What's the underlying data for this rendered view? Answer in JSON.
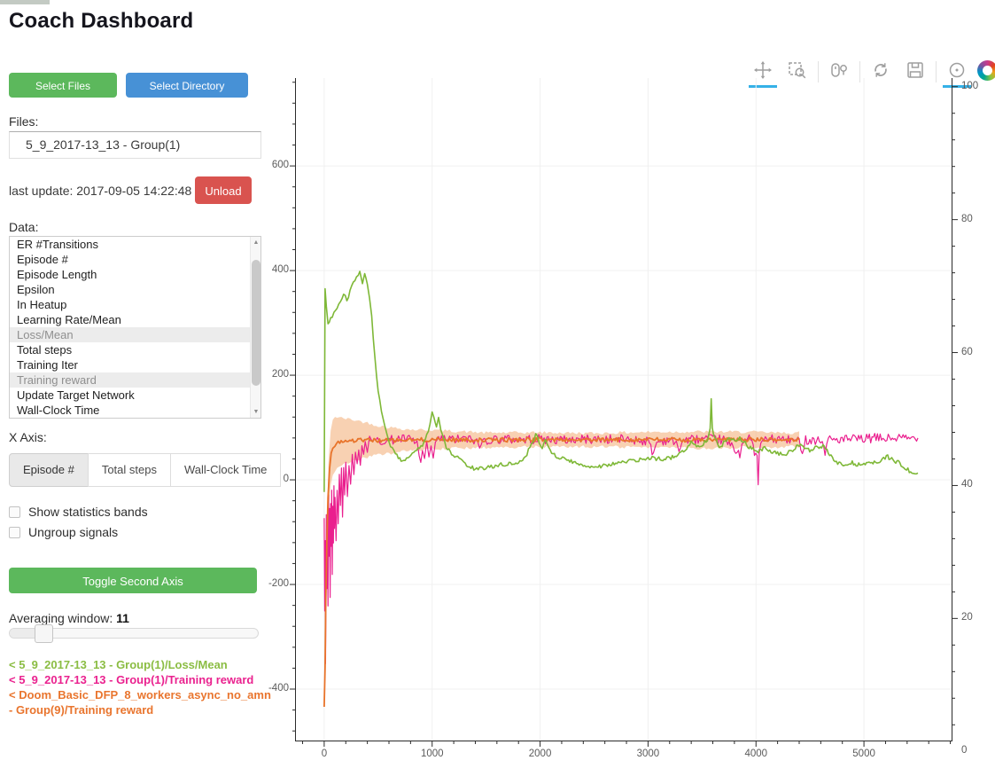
{
  "page": {
    "title": "Coach Dashboard"
  },
  "sidebar": {
    "select_files_label": "Select Files",
    "select_directory_label": "Select Directory",
    "files_label": "Files:",
    "file_selected": "5_9_2017-13_13 - Group(1)",
    "last_update": "last update: 2017-09-05 14:22:48",
    "unload_label": "Unload",
    "data_label": "Data:",
    "data_items": [
      {
        "label": "ER #Transitions",
        "selected": false
      },
      {
        "label": "Episode #",
        "selected": false
      },
      {
        "label": "Episode Length",
        "selected": false
      },
      {
        "label": "Epsilon",
        "selected": false
      },
      {
        "label": "In Heatup",
        "selected": false
      },
      {
        "label": "Learning Rate/Mean",
        "selected": false
      },
      {
        "label": "Loss/Mean",
        "selected": true
      },
      {
        "label": "Total steps",
        "selected": false
      },
      {
        "label": "Training Iter",
        "selected": false
      },
      {
        "label": "Training reward",
        "selected": true
      },
      {
        "label": "Update Target Network",
        "selected": false
      },
      {
        "label": "Wall-Clock Time",
        "selected": false
      }
    ],
    "xaxis_label": "X Axis:",
    "xaxis_tabs": [
      {
        "label": "Episode #",
        "active": true
      },
      {
        "label": "Total steps",
        "active": false
      },
      {
        "label": "Wall-Clock Time",
        "active": false
      }
    ],
    "checkboxes": [
      {
        "label": "Show statistics bands",
        "checked": false
      },
      {
        "label": "Ungroup signals",
        "checked": false
      }
    ],
    "toggle_second_axis_label": "Toggle Second Axis",
    "averaging_label": "Averaging window:",
    "averaging_value": "11",
    "legend": [
      {
        "text": "< 5_9_2017-13_13 - Group(1)/Loss/Mean",
        "color": "#8bbd43"
      },
      {
        "text": "< 5_9_2017-13_13 - Group(1)/Training reward",
        "color": "#ea228f"
      },
      {
        "text": "< Doom_Basic_DFP_8_workers_async_no_amn - Group(9)/Training reward",
        "color": "#e9752e"
      }
    ]
  },
  "toolbar": {
    "tools": [
      {
        "type": "tool",
        "icon": "pan",
        "name": "pan-tool-icon",
        "active": true
      },
      {
        "type": "tool",
        "icon": "box-zoom",
        "name": "box-zoom-tool-icon",
        "active": false
      },
      {
        "type": "sep"
      },
      {
        "type": "tool",
        "icon": "wheel-zoom",
        "name": "wheel-zoom-tool-icon",
        "active": false
      },
      {
        "type": "sep"
      },
      {
        "type": "tool",
        "icon": "reset",
        "name": "reset-tool-icon",
        "active": false
      },
      {
        "type": "tool",
        "icon": "save",
        "name": "save-tool-icon",
        "active": false
      },
      {
        "type": "sep"
      },
      {
        "type": "tool",
        "icon": "hover",
        "name": "hover-tool-icon",
        "active": true
      },
      {
        "type": "logo",
        "name": "bokeh-logo"
      }
    ],
    "active_color": "#35b1e7"
  },
  "chart_data": {
    "type": "line",
    "title": "",
    "xlabel": "",
    "ylabel": "",
    "grid": true,
    "x_axis": {
      "min": -270,
      "max": 5820,
      "major_ticks": [
        0,
        1000,
        2000,
        3000,
        4000,
        5000
      ],
      "minor_step": 200
    },
    "y_left": {
      "min": -500,
      "max": 768,
      "major_ticks": [
        -400,
        -200,
        0,
        200,
        400,
        600
      ],
      "minor_step": 40
    },
    "y_right": {
      "min": 1.5,
      "max": 101.3,
      "major_ticks": [
        0,
        20,
        40,
        60,
        80,
        100
      ],
      "minor_step": 4
    },
    "series": [
      {
        "name": "5_9_2017-13_13 - Group(1)/Loss/Mean",
        "color": "#7eb837",
        "width": 1.6,
        "jitter": 4,
        "z": 3,
        "points": [
          [
            0,
            -20
          ],
          [
            8,
            365
          ],
          [
            20,
            330
          ],
          [
            35,
            300
          ],
          [
            60,
            310
          ],
          [
            90,
            318
          ],
          [
            120,
            330
          ],
          [
            150,
            340
          ],
          [
            180,
            352
          ],
          [
            210,
            345
          ],
          [
            240,
            360
          ],
          [
            270,
            378
          ],
          [
            300,
            390
          ],
          [
            330,
            396
          ],
          [
            355,
            378
          ],
          [
            375,
            396
          ],
          [
            400,
            372
          ],
          [
            420,
            345
          ],
          [
            440,
            310
          ],
          [
            455,
            270
          ],
          [
            470,
            230
          ],
          [
            485,
            195
          ],
          [
            500,
            168
          ],
          [
            515,
            150
          ],
          [
            530,
            132
          ],
          [
            545,
            120
          ],
          [
            560,
            108
          ],
          [
            580,
            88
          ],
          [
            600,
            72
          ],
          [
            630,
            58
          ],
          [
            660,
            48
          ],
          [
            700,
            40
          ],
          [
            750,
            36
          ],
          [
            790,
            42
          ],
          [
            830,
            50
          ],
          [
            870,
            58
          ],
          [
            910,
            68
          ],
          [
            950,
            85
          ],
          [
            980,
            105
          ],
          [
            1000,
            132
          ],
          [
            1015,
            118
          ],
          [
            1040,
            105
          ],
          [
            1060,
            122
          ],
          [
            1080,
            98
          ],
          [
            1100,
            80
          ],
          [
            1130,
            62
          ],
          [
            1180,
            50
          ],
          [
            1250,
            40
          ],
          [
            1320,
            28
          ],
          [
            1400,
            20
          ],
          [
            1480,
            22
          ],
          [
            1560,
            26
          ],
          [
            1650,
            30
          ],
          [
            1750,
            30
          ],
          [
            1850,
            38
          ],
          [
            1920,
            68
          ],
          [
            1960,
            88
          ],
          [
            1990,
            72
          ],
          [
            2020,
            62
          ],
          [
            2050,
            78
          ],
          [
            2080,
            62
          ],
          [
            2120,
            50
          ],
          [
            2180,
            42
          ],
          [
            2250,
            38
          ],
          [
            2350,
            30
          ],
          [
            2450,
            26
          ],
          [
            2550,
            26
          ],
          [
            2650,
            30
          ],
          [
            2750,
            33
          ],
          [
            2850,
            36
          ],
          [
            2950,
            39
          ],
          [
            3050,
            41
          ],
          [
            3150,
            40
          ],
          [
            3250,
            44
          ],
          [
            3330,
            55
          ],
          [
            3400,
            72
          ],
          [
            3450,
            62
          ],
          [
            3500,
            68
          ],
          [
            3550,
            78
          ],
          [
            3575,
            100
          ],
          [
            3585,
            155
          ],
          [
            3595,
            100
          ],
          [
            3620,
            78
          ],
          [
            3660,
            62
          ],
          [
            3700,
            70
          ],
          [
            3750,
            84
          ],
          [
            3800,
            74
          ],
          [
            3850,
            80
          ],
          [
            3900,
            70
          ],
          [
            3960,
            58
          ],
          [
            4020,
            55
          ],
          [
            4080,
            60
          ],
          [
            4140,
            54
          ],
          [
            4200,
            50
          ],
          [
            4280,
            48
          ],
          [
            4340,
            58
          ],
          [
            4400,
            68
          ],
          [
            4450,
            60
          ],
          [
            4510,
            55
          ],
          [
            4560,
            62
          ],
          [
            4620,
            64
          ],
          [
            4670,
            52
          ],
          [
            4720,
            40
          ],
          [
            4770,
            30
          ],
          [
            4820,
            28
          ],
          [
            4880,
            33
          ],
          [
            4940,
            29
          ],
          [
            5000,
            28
          ],
          [
            5060,
            36
          ],
          [
            5120,
            30
          ],
          [
            5170,
            40
          ],
          [
            5220,
            44
          ],
          [
            5270,
            38
          ],
          [
            5320,
            33
          ],
          [
            5370,
            24
          ],
          [
            5420,
            17
          ],
          [
            5470,
            14
          ],
          [
            5500,
            13
          ]
        ]
      },
      {
        "name": "5_9_2017-13_13 - Group(1)/Training reward",
        "color": "#ea1f8e",
        "width": 1.2,
        "jitter": 9,
        "z": 1,
        "points": [
          [
            0,
            -80
          ],
          [
            5,
            -250
          ],
          [
            10,
            -120
          ],
          [
            12,
            -345
          ],
          [
            15,
            -260
          ],
          [
            20,
            -60
          ],
          [
            25,
            -200
          ],
          [
            30,
            -90
          ],
          [
            35,
            -240
          ],
          [
            40,
            -30
          ],
          [
            45,
            -150
          ],
          [
            50,
            -60
          ],
          [
            55,
            -230
          ],
          [
            60,
            -40
          ],
          [
            65,
            -130
          ],
          [
            70,
            -20
          ],
          [
            75,
            -180
          ],
          [
            80,
            -50
          ],
          [
            85,
            -120
          ],
          [
            90,
            -10
          ],
          [
            95,
            -90
          ],
          [
            100,
            -30
          ],
          [
            110,
            -110
          ],
          [
            120,
            -20
          ],
          [
            130,
            -80
          ],
          [
            140,
            10
          ],
          [
            150,
            -50
          ],
          [
            160,
            20
          ],
          [
            170,
            -70
          ],
          [
            180,
            30
          ],
          [
            190,
            -20
          ],
          [
            200,
            40
          ],
          [
            215,
            -40
          ],
          [
            230,
            35
          ],
          [
            245,
            -15
          ],
          [
            260,
            50
          ],
          [
            275,
            10
          ],
          [
            290,
            60
          ],
          [
            305,
            25
          ],
          [
            320,
            65
          ],
          [
            335,
            30
          ],
          [
            350,
            70
          ],
          [
            365,
            45
          ],
          [
            380,
            72
          ],
          [
            400,
            60
          ],
          [
            420,
            75
          ],
          [
            450,
            70
          ],
          [
            480,
            76
          ],
          [
            520,
            74
          ],
          [
            560,
            77
          ],
          [
            600,
            76
          ],
          [
            700,
            78
          ],
          [
            800,
            77
          ],
          [
            860,
            70
          ],
          [
            880,
            45
          ],
          [
            895,
            30
          ],
          [
            910,
            55
          ],
          [
            930,
            40
          ],
          [
            950,
            65
          ],
          [
            970,
            35
          ],
          [
            990,
            60
          ],
          [
            1010,
            45
          ],
          [
            1030,
            70
          ],
          [
            1060,
            76
          ],
          [
            1100,
            78
          ],
          [
            1200,
            77
          ],
          [
            1300,
            78
          ],
          [
            1400,
            76
          ],
          [
            1440,
            62
          ],
          [
            1470,
            75
          ],
          [
            1600,
            78
          ],
          [
            1800,
            77
          ],
          [
            2000,
            78
          ],
          [
            2200,
            76
          ],
          [
            2400,
            78
          ],
          [
            2600,
            77
          ],
          [
            2800,
            78
          ],
          [
            3000,
            74
          ],
          [
            3050,
            50
          ],
          [
            3080,
            72
          ],
          [
            3200,
            78
          ],
          [
            3300,
            60
          ],
          [
            3320,
            76
          ],
          [
            3500,
            78
          ],
          [
            3700,
            77
          ],
          [
            3850,
            50
          ],
          [
            3870,
            75
          ],
          [
            3950,
            78
          ],
          [
            4010,
            40
          ],
          [
            4020,
            -5
          ],
          [
            4030,
            50
          ],
          [
            4060,
            76
          ],
          [
            4200,
            78
          ],
          [
            4400,
            74
          ],
          [
            4430,
            58
          ],
          [
            4460,
            77
          ],
          [
            4600,
            76
          ],
          [
            4640,
            55
          ],
          [
            4670,
            78
          ],
          [
            4800,
            77
          ],
          [
            5000,
            78
          ],
          [
            5100,
            80
          ],
          [
            5200,
            79
          ],
          [
            5300,
            80
          ],
          [
            5400,
            79
          ],
          [
            5500,
            80
          ]
        ]
      },
      {
        "name": "Doom_Basic_DFP_8_workers_async_no_amn - Group(9)/Training reward",
        "color": "#e8732a",
        "width": 1.8,
        "jitter": 4,
        "z": 2,
        "band": {
          "color": "#f3b27e",
          "opacity": 0.6,
          "amplitude": [
            [
              0,
              0
            ],
            [
              30,
              45
            ],
            [
              80,
              55
            ],
            [
              150,
              45
            ],
            [
              300,
              38
            ],
            [
              500,
              28
            ],
            [
              800,
              20
            ],
            [
              1500,
              14
            ],
            [
              2500,
              13
            ],
            [
              3500,
              16
            ],
            [
              4400,
              13
            ]
          ]
        },
        "points": [
          [
            0,
            -430
          ],
          [
            8,
            -360
          ],
          [
            15,
            -230
          ],
          [
            25,
            -120
          ],
          [
            35,
            -30
          ],
          [
            50,
            25
          ],
          [
            65,
            50
          ],
          [
            80,
            62
          ],
          [
            100,
            68
          ],
          [
            130,
            72
          ],
          [
            170,
            74
          ],
          [
            250,
            75
          ],
          [
            400,
            76
          ],
          [
            600,
            75
          ],
          [
            800,
            76
          ],
          [
            1000,
            77
          ],
          [
            1500,
            76
          ],
          [
            2000,
            77
          ],
          [
            2500,
            76
          ],
          [
            3000,
            77
          ],
          [
            3500,
            76
          ],
          [
            4000,
            77
          ],
          [
            4200,
            76
          ],
          [
            4400,
            77
          ]
        ]
      }
    ]
  }
}
